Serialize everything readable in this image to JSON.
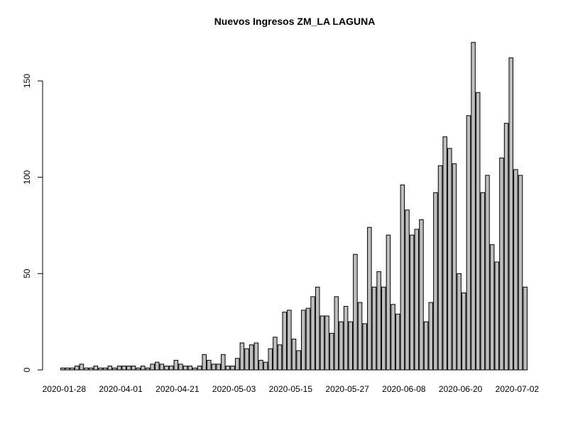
{
  "chart_data": {
    "type": "bar",
    "title": "Nuevos Ingresos ZM_LA LAGUNA",
    "xlabel": "",
    "ylabel": "",
    "ylim": [
      0,
      175
    ],
    "yticks": [
      0,
      50,
      100,
      150
    ],
    "x_tick_labels": [
      "2020-01-28",
      "2020-04-01",
      "2020-04-21",
      "2020-05-03",
      "2020-05-15",
      "2020-05-27",
      "2020-06-08",
      "2020-06-20",
      "2020-07-02"
    ],
    "x_tick_bar_indices": [
      0,
      12,
      24,
      36,
      48,
      60,
      72,
      84,
      96
    ],
    "values": [
      1,
      1,
      1,
      2,
      3,
      1,
      1,
      2,
      1,
      1,
      2,
      1,
      2,
      2,
      2,
      2,
      1,
      2,
      1,
      3,
      4,
      3,
      2,
      2,
      5,
      3,
      2,
      2,
      1,
      2,
      8,
      5,
      3,
      3,
      8,
      2,
      2,
      6,
      14,
      11,
      13,
      14,
      5,
      4,
      11,
      17,
      13,
      30,
      31,
      16,
      10,
      31,
      32,
      38,
      43,
      28,
      28,
      19,
      38,
      25,
      33,
      25,
      60,
      35,
      24,
      74,
      43,
      51,
      43,
      70,
      34,
      29,
      96,
      83,
      70,
      73,
      78,
      25,
      35,
      92,
      106,
      121,
      115,
      107,
      50,
      40,
      132,
      170,
      144,
      92,
      101,
      65,
      56,
      110,
      128,
      162,
      104,
      101,
      43
    ],
    "grid": false,
    "legend": "none",
    "bar_color": "#bebebe",
    "bar_border_color": "#000000"
  }
}
